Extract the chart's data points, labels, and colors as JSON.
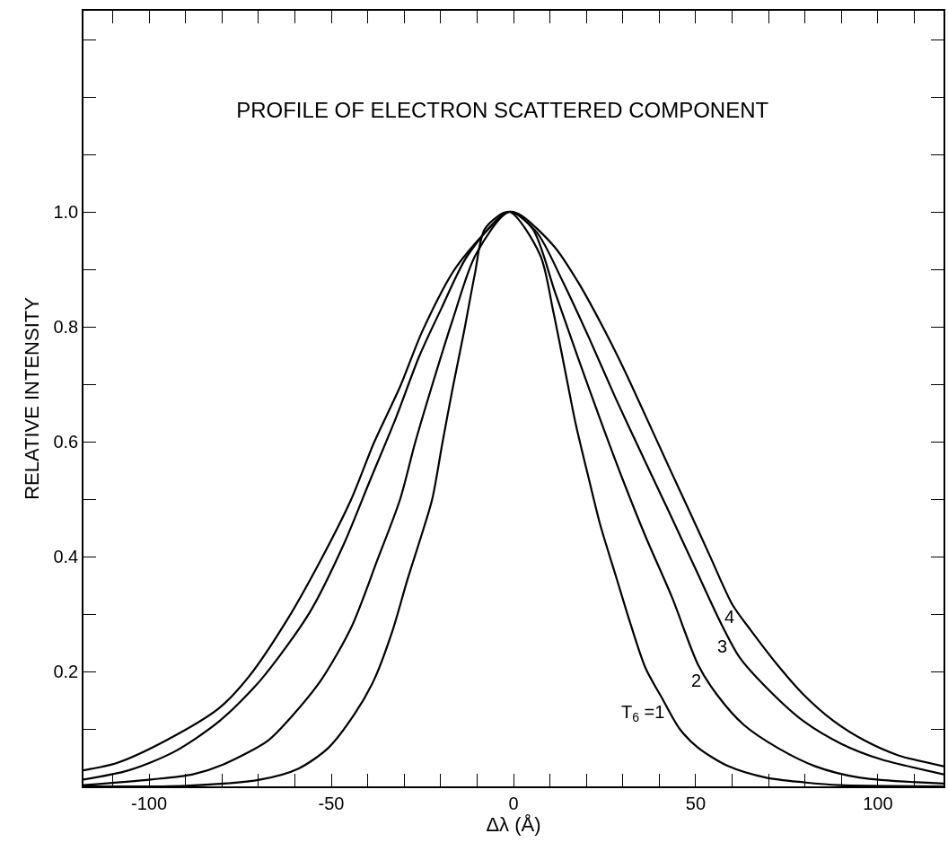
{
  "chart_data": {
    "type": "line",
    "title": "PROFILE OF ELECTRON SCATTERED COMPONENT",
    "xlabel": "Δλ (Å)",
    "ylabel": "RELATIVE INTENSITY",
    "xlim": [
      -118,
      118
    ],
    "ylim": [
      0,
      1.35
    ],
    "xticks": [
      {
        "value": -110,
        "label": null
      },
      -100,
      {
        "value": -90,
        "label": null
      },
      {
        "value": -80,
        "label": null
      },
      {
        "value": -70,
        "label": null
      },
      {
        "value": -60,
        "label": null
      },
      -50,
      {
        "value": -40,
        "label": null
      },
      {
        "value": -30,
        "label": null
      },
      {
        "value": -20,
        "label": null
      },
      {
        "value": -10,
        "label": null
      },
      0,
      {
        "value": 10,
        "label": null
      },
      {
        "value": 20,
        "label": null
      },
      {
        "value": 30,
        "label": null
      },
      {
        "value": 40,
        "label": null
      },
      50,
      {
        "value": 60,
        "label": null
      },
      {
        "value": 70,
        "label": null
      },
      {
        "value": 80,
        "label": null
      },
      {
        "value": 90,
        "label": null
      },
      100,
      {
        "value": 110,
        "label": null
      }
    ],
    "yticks": [
      {
        "value": 0.1,
        "label": null
      },
      0.2,
      {
        "value": 0.3,
        "label": null
      },
      0.4,
      {
        "value": 0.5,
        "label": null
      },
      0.6,
      {
        "value": 0.7,
        "label": null
      },
      0.8,
      {
        "value": 0.9,
        "label": null
      },
      {
        "value": 1.0,
        "label": "1.0"
      },
      {
        "value": 1.1,
        "label": null
      },
      {
        "value": 1.2,
        "label": null
      },
      {
        "value": 1.3,
        "label": null
      }
    ],
    "legend": false,
    "marker": "none",
    "line_style": "solid",
    "series": [
      {
        "color": "#000000",
        "x": [
          -118.0,
          -90.1,
          -69.4,
          -59.0,
          -50.8,
          -43.5,
          -38.3,
          -33.2,
          -29.1,
          -25.4,
          -22.3,
          -19.5,
          -16.6,
          -13.5,
          -10.6,
          -7.8,
          -1.2,
          7.3,
          10.9,
          14.0,
          17.1,
          20.8,
          23.9,
          28.0,
          32.1,
          36.3,
          40.9,
          45.6,
          50.7,
          59.0,
          69.4,
          79.7,
          89.6,
          118.0
        ],
        "values": [
          0.0,
          0.001,
          0.012,
          0.031,
          0.067,
          0.127,
          0.185,
          0.271,
          0.36,
          0.434,
          0.5,
          0.598,
          0.696,
          0.794,
          0.892,
          0.971,
          1.0,
          0.925,
          0.827,
          0.729,
          0.63,
          0.532,
          0.453,
          0.368,
          0.283,
          0.205,
          0.152,
          0.1,
          0.067,
          0.035,
          0.015,
          0.007,
          0.002,
          0.0
        ]
      },
      {
        "color": "#000000",
        "x": [
          -118.0,
          -99.4,
          -88.0,
          -79.7,
          -67.3,
          -61.1,
          -52.8,
          -44.5,
          -37.3,
          -31.1,
          -27.0,
          -21.8,
          -16.6,
          -10.4,
          -1.2,
          5.2,
          11.4,
          17.6,
          23.9,
          30.1,
          36.3,
          43.5,
          50.7,
          55.9,
          63.2,
          72.5,
          82.8,
          95.2,
          118.0
        ],
        "values": [
          0.002,
          0.012,
          0.021,
          0.038,
          0.08,
          0.12,
          0.185,
          0.277,
          0.395,
          0.5,
          0.598,
          0.709,
          0.814,
          0.925,
          1.0,
          0.971,
          0.86,
          0.748,
          0.637,
          0.532,
          0.434,
          0.329,
          0.211,
          0.159,
          0.107,
          0.067,
          0.035,
          0.015,
          0.005
        ]
      },
      {
        "color": "#000000",
        "x": [
          -118.0,
          -105.6,
          -93.2,
          -80.8,
          -69.4,
          -55.9,
          -46.6,
          -39.4,
          -32.1,
          -25.9,
          -19.7,
          -12.5,
          -1.2,
          6.3,
          13.5,
          20.7,
          28.0,
          35.2,
          42.5,
          49.7,
          57.0,
          62.1,
          69.4,
          79.7,
          90.0,
          100.4,
          118.0
        ],
        "values": [
          0.012,
          0.028,
          0.06,
          0.113,
          0.185,
          0.303,
          0.421,
          0.532,
          0.644,
          0.748,
          0.833,
          0.925,
          1.0,
          0.965,
          0.879,
          0.781,
          0.676,
          0.578,
          0.48,
          0.382,
          0.283,
          0.224,
          0.172,
          0.113,
          0.074,
          0.048,
          0.021
        ]
      },
      {
        "color": "#000000",
        "x": [
          -118.0,
          -108.7,
          -95.3,
          -80.8,
          -72.5,
          -62.1,
          -52.8,
          -44.5,
          -38.3,
          -31.1,
          -24.9,
          -15.6,
          -1.2,
          2.1,
          11.4,
          17.6,
          23.9,
          30.1,
          36.3,
          42.5,
          48.7,
          53.9,
          60.1,
          65.2,
          72.5,
          79.7,
          88.0,
          96.3,
          105.6,
          118.0
        ],
        "values": [
          0.028,
          0.041,
          0.08,
          0.136,
          0.192,
          0.29,
          0.395,
          0.5,
          0.598,
          0.696,
          0.794,
          0.905,
          1.0,
          0.994,
          0.938,
          0.879,
          0.807,
          0.729,
          0.644,
          0.558,
          0.473,
          0.401,
          0.316,
          0.271,
          0.211,
          0.159,
          0.113,
          0.08,
          0.054,
          0.035
        ]
      }
    ],
    "annotations": [
      {
        "text": "T$_{6}$ =1",
        "x": 43.3,
        "y": 0.127
      },
      {
        "text": "2",
        "x": 53.3,
        "y": 0.185
      },
      {
        "text": "3",
        "x": 60.4,
        "y": 0.244
      },
      {
        "text": "4",
        "x": 62.4,
        "y": 0.296
      }
    ]
  }
}
